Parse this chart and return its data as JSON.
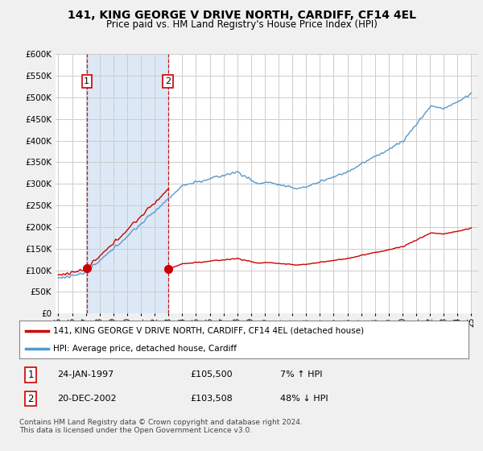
{
  "title": "141, KING GEORGE V DRIVE NORTH, CARDIFF, CF14 4EL",
  "subtitle": "Price paid vs. HM Land Registry's House Price Index (HPI)",
  "legend_label_red": "141, KING GEORGE V DRIVE NORTH, CARDIFF, CF14 4EL (detached house)",
  "legend_label_blue": "HPI: Average price, detached house, Cardiff",
  "annotation1_date": "24-JAN-1997",
  "annotation1_price": "£105,500",
  "annotation1_hpi": "7% ↑ HPI",
  "annotation2_date": "20-DEC-2002",
  "annotation2_price": "£103,508",
  "annotation2_hpi": "48% ↓ HPI",
  "footer": "Contains HM Land Registry data © Crown copyright and database right 2024.\nThis data is licensed under the Open Government Licence v3.0.",
  "sale1_year": 1997.07,
  "sale1_price": 105500,
  "sale2_year": 2002.97,
  "sale2_price": 103508,
  "ylim_min": 0,
  "ylim_max": 600000,
  "ytick_step": 50000,
  "plot_bg_color": "#ffffff",
  "shade_color": "#dce8f5",
  "grid_color": "#cccccc",
  "red_line_color": "#cc0000",
  "blue_line_color": "#5599cc",
  "dashed_line_color": "#cc0000"
}
